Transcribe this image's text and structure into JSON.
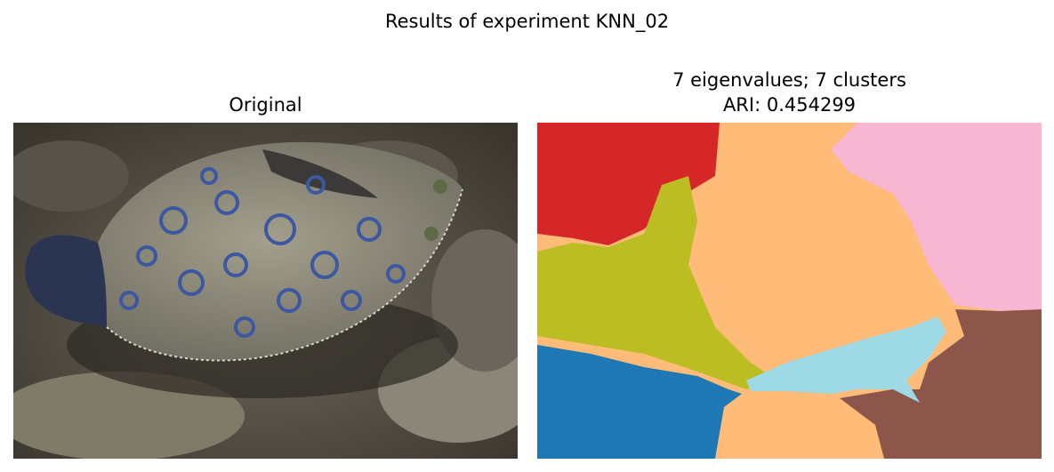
{
  "figure": {
    "suptitle": "Results of experiment KNN_02"
  },
  "panels": [
    {
      "title": "Original"
    },
    {
      "title_line1": "7 eigenvalues; 7 clusters",
      "title_line2": "ARI: 0.454299"
    }
  ],
  "segmentation_colors": {
    "red": "#d62728",
    "light_orange": "#ffbb78",
    "pink": "#f7b6d2",
    "olive": "#bcbd22",
    "blue": "#1f77b4",
    "cyan": "#9edae5",
    "brown": "#8c564b"
  }
}
